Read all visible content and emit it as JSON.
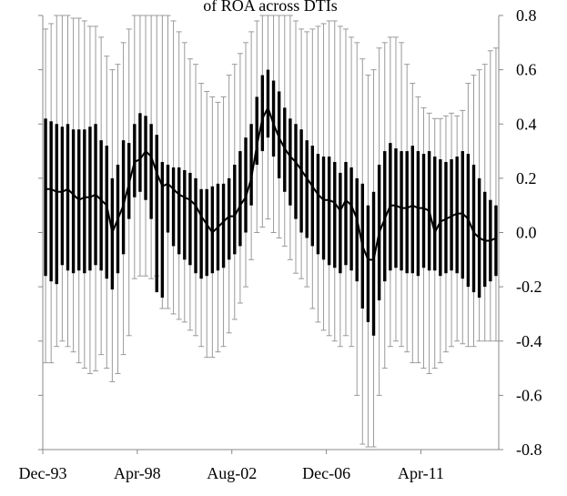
{
  "chart_data": {
    "type": "range",
    "title": "of ROA across DTIs",
    "categories": [
      "Dec-93",
      null,
      null,
      null,
      null,
      null,
      null,
      null,
      null,
      null,
      null,
      null,
      null,
      null,
      null,
      null,
      null,
      "Apr-98",
      null,
      null,
      null,
      null,
      null,
      null,
      null,
      null,
      null,
      null,
      null,
      null,
      null,
      null,
      null,
      null,
      "Aug-02",
      null,
      null,
      null,
      null,
      null,
      null,
      null,
      null,
      null,
      null,
      null,
      null,
      null,
      null,
      null,
      null,
      "Dec-06",
      null,
      null,
      null,
      null,
      null,
      null,
      null,
      null,
      null,
      null,
      null,
      null,
      null,
      null,
      null,
      null,
      "Apr-11",
      null,
      null,
      null,
      null,
      null,
      null,
      null,
      null,
      null,
      null,
      null,
      null,
      null
    ],
    "high": [
      0.75,
      0.77,
      0.8,
      0.8,
      0.8,
      0.79,
      0.79,
      0.78,
      0.76,
      0.76,
      0.72,
      0.65,
      0.6,
      0.62,
      0.7,
      0.75,
      0.8,
      0.8,
      0.8,
      0.8,
      0.8,
      0.8,
      0.8,
      0.78,
      0.74,
      0.7,
      0.64,
      0.62,
      0.55,
      0.52,
      0.5,
      0.48,
      0.5,
      0.58,
      0.62,
      0.66,
      0.7,
      0.74,
      0.78,
      0.8,
      0.8,
      0.8,
      0.8,
      0.8,
      0.8,
      0.78,
      0.75,
      0.74,
      0.75,
      0.76,
      0.77,
      0.78,
      0.78,
      0.76,
      0.75,
      0.72,
      0.7,
      0.64,
      0.58,
      0.6,
      0.68,
      0.7,
      0.72,
      0.72,
      0.7,
      0.62,
      0.55,
      0.5,
      0.46,
      0.44,
      0.42,
      0.42,
      0.43,
      0.44,
      0.43,
      0.45,
      0.55,
      0.58,
      0.6,
      0.62,
      0.67,
      0.68
    ],
    "low": [
      -0.48,
      -0.48,
      -0.42,
      -0.4,
      -0.42,
      -0.44,
      -0.48,
      -0.5,
      -0.52,
      -0.51,
      -0.45,
      -0.5,
      -0.55,
      -0.52,
      -0.45,
      -0.38,
      -0.17,
      -0.16,
      -0.16,
      -0.17,
      -0.16,
      -0.28,
      -0.28,
      -0.3,
      -0.32,
      -0.33,
      -0.36,
      -0.38,
      -0.42,
      -0.46,
      -0.46,
      -0.44,
      -0.42,
      -0.37,
      -0.32,
      -0.26,
      -0.2,
      -0.1,
      0.0,
      0.02,
      0.05,
      0.0,
      -0.02,
      -0.05,
      -0.1,
      -0.15,
      -0.17,
      -0.2,
      -0.28,
      -0.33,
      -0.36,
      -0.38,
      -0.4,
      -0.42,
      -0.38,
      -0.42,
      -0.6,
      -0.78,
      -0.79,
      -0.79,
      -0.6,
      -0.5,
      -0.42,
      -0.4,
      -0.42,
      -0.44,
      -0.48,
      -0.48,
      -0.5,
      -0.52,
      -0.5,
      -0.48,
      -0.44,
      -0.42,
      -0.4,
      -0.41,
      -0.42,
      -0.42,
      -0.4,
      -0.4,
      -0.4,
      -0.4
    ],
    "q3": [
      0.42,
      0.41,
      0.4,
      0.39,
      0.4,
      0.38,
      0.38,
      0.38,
      0.39,
      0.4,
      0.34,
      0.32,
      0.2,
      0.25,
      0.34,
      0.33,
      0.4,
      0.44,
      0.43,
      0.4,
      0.36,
      0.26,
      0.25,
      0.24,
      0.24,
      0.23,
      0.22,
      0.2,
      0.16,
      0.16,
      0.17,
      0.18,
      0.18,
      0.2,
      0.25,
      0.3,
      0.35,
      0.4,
      0.5,
      0.58,
      0.6,
      0.56,
      0.52,
      0.46,
      0.42,
      0.4,
      0.38,
      0.34,
      0.32,
      0.29,
      0.28,
      0.28,
      0.26,
      0.22,
      0.26,
      0.24,
      0.2,
      0.18,
      0.1,
      0.15,
      0.25,
      0.3,
      0.33,
      0.31,
      0.3,
      0.3,
      0.32,
      0.3,
      0.29,
      0.3,
      0.28,
      0.27,
      0.26,
      0.27,
      0.28,
      0.3,
      0.29,
      0.25,
      0.2,
      0.15,
      0.12,
      0.1
    ],
    "q1": [
      -0.16,
      -0.18,
      -0.19,
      -0.12,
      -0.14,
      -0.15,
      -0.14,
      -0.15,
      -0.14,
      -0.12,
      -0.14,
      -0.17,
      -0.21,
      -0.15,
      -0.08,
      0.05,
      0.13,
      0.15,
      0.12,
      0.05,
      -0.22,
      -0.24,
      0.0,
      -0.05,
      -0.08,
      -0.1,
      -0.12,
      -0.15,
      -0.17,
      -0.16,
      -0.15,
      -0.14,
      -0.13,
      -0.1,
      -0.08,
      -0.05,
      0.0,
      0.1,
      0.25,
      0.3,
      0.35,
      0.28,
      0.2,
      0.15,
      0.1,
      0.05,
      0.0,
      -0.02,
      -0.05,
      -0.08,
      -0.1,
      -0.12,
      -0.13,
      -0.15,
      -0.12,
      -0.14,
      -0.18,
      -0.28,
      -0.33,
      -0.38,
      -0.25,
      -0.18,
      -0.14,
      -0.13,
      -0.14,
      -0.15,
      -0.15,
      -0.16,
      -0.13,
      -0.14,
      -0.14,
      -0.16,
      -0.15,
      -0.14,
      -0.15,
      -0.17,
      -0.2,
      -0.22,
      -0.24,
      -0.2,
      -0.18,
      -0.16
    ],
    "median": [
      0.16,
      0.16,
      0.15,
      0.15,
      0.16,
      0.14,
      0.12,
      0.13,
      0.13,
      0.14,
      0.12,
      0.1,
      0.0,
      0.05,
      0.1,
      0.18,
      0.26,
      0.27,
      0.3,
      0.28,
      0.22,
      0.17,
      0.18,
      0.16,
      0.14,
      0.13,
      0.12,
      0.1,
      0.06,
      0.03,
      0.0,
      0.02,
      0.04,
      0.06,
      0.06,
      0.1,
      0.13,
      0.2,
      0.32,
      0.42,
      0.46,
      0.4,
      0.35,
      0.31,
      0.28,
      0.26,
      0.23,
      0.2,
      0.17,
      0.14,
      0.12,
      0.12,
      0.11,
      0.08,
      0.12,
      0.1,
      0.05,
      -0.05,
      -0.1,
      -0.1,
      0.0,
      0.05,
      0.1,
      0.1,
      0.09,
      0.09,
      0.1,
      0.09,
      0.09,
      0.08,
      0.0,
      0.04,
      0.05,
      0.06,
      0.07,
      0.07,
      0.05,
      0.0,
      -0.02,
      -0.03,
      -0.03,
      -0.02
    ],
    "range_color": "#9a9a9a",
    "box_color": "#000000",
    "line_color": "#000000",
    "ylim": [
      -0.8,
      0.8
    ],
    "yticks": [
      -0.8,
      -0.6,
      -0.4,
      -0.2,
      {
        "value": 0,
        "label": "0.0"
      },
      0.2,
      0.4,
      0.6,
      0.8
    ]
  }
}
